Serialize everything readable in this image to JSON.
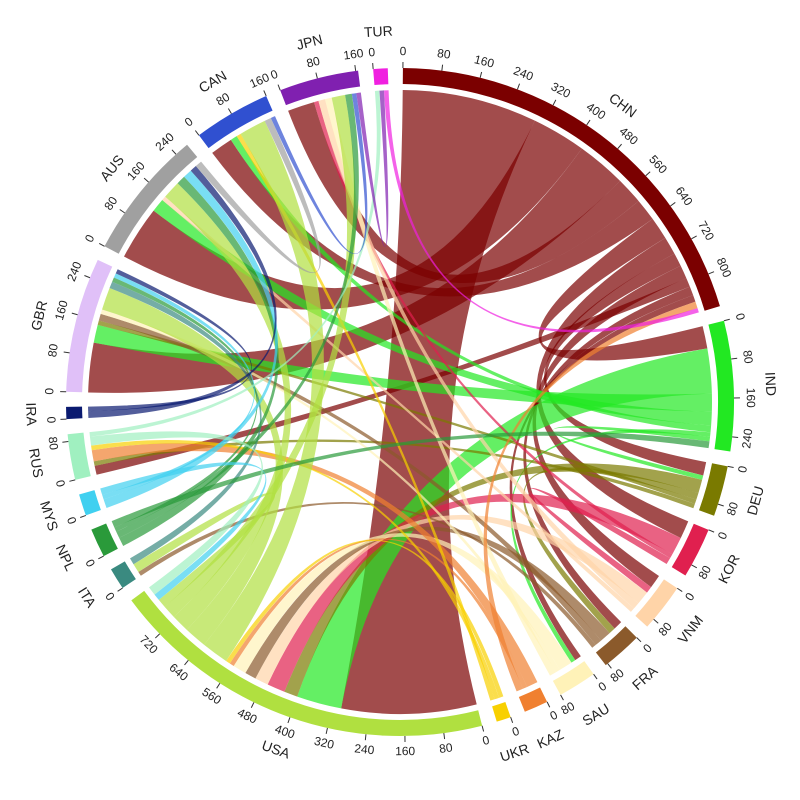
{
  "chart_data": {
    "type": "chord",
    "nodes": [
      {
        "name": "CHN",
        "color": "#7b0000",
        "ticks": [
          0,
          80,
          160,
          240,
          320,
          400,
          480,
          560,
          640,
          720,
          800
        ]
      },
      {
        "name": "IND",
        "color": "#22e822",
        "ticks": [
          0,
          80,
          160,
          240
        ]
      },
      {
        "name": "DEU",
        "color": "#7a7a00",
        "ticks": [
          0,
          80
        ]
      },
      {
        "name": "KOR",
        "color": "#e0204f",
        "ticks": [
          0,
          80
        ]
      },
      {
        "name": "VNM",
        "color": "#ffd4a8",
        "ticks": [
          0,
          80
        ]
      },
      {
        "name": "FRA",
        "color": "#8b5a2b",
        "ticks": [
          0,
          80
        ]
      },
      {
        "name": "SAU",
        "color": "#fff2b8",
        "ticks": [
          0,
          80
        ]
      },
      {
        "name": "KAZ",
        "color": "#f08030",
        "ticks": [
          0
        ]
      },
      {
        "name": "UKR",
        "color": "#f8d000",
        "ticks": [
          0
        ]
      },
      {
        "name": "USA",
        "color": "#b0e040",
        "ticks": [
          0,
          80,
          160,
          240,
          320,
          400,
          480,
          560,
          640,
          720
        ]
      },
      {
        "name": "ITA",
        "color": "#3a8a80",
        "ticks": [
          0
        ]
      },
      {
        "name": "NPL",
        "color": "#2a9a3a",
        "ticks": [
          0
        ]
      },
      {
        "name": "MYS",
        "color": "#40d0f0",
        "ticks": [
          0
        ]
      },
      {
        "name": "RUS",
        "color": "#a0f0c0",
        "ticks": [
          0,
          80
        ]
      },
      {
        "name": "IRA",
        "color": "#0a1a70",
        "ticks": [
          0
        ]
      },
      {
        "name": "GBR",
        "color": "#e0c0f8",
        "ticks": [
          0,
          80,
          160,
          240
        ]
      },
      {
        "name": "AUS",
        "color": "#a0a0a0",
        "ticks": [
          0,
          80,
          160,
          240
        ]
      },
      {
        "name": "CAN",
        "color": "#3050d0",
        "ticks": [
          0,
          80,
          160
        ]
      },
      {
        "name": "JPN",
        "color": "#8020b0",
        "ticks": [
          0,
          80,
          160
        ]
      },
      {
        "name": "TUR",
        "color": "#f020e0",
        "ticks": [
          0
        ]
      }
    ],
    "flows": [
      {
        "source": 0,
        "target": 9,
        "value": 300
      },
      {
        "source": 0,
        "target": 16,
        "value": 120
      },
      {
        "source": 0,
        "target": 15,
        "value": 110
      },
      {
        "source": 0,
        "target": 18,
        "value": 60
      },
      {
        "source": 0,
        "target": 17,
        "value": 50
      },
      {
        "source": 0,
        "target": 1,
        "value": 50
      },
      {
        "source": 0,
        "target": 3,
        "value": 40
      },
      {
        "source": 0,
        "target": 2,
        "value": 30
      },
      {
        "source": 0,
        "target": 4,
        "value": 30
      },
      {
        "source": 0,
        "target": 13,
        "value": 20
      },
      {
        "source": 0,
        "target": 5,
        "value": 20
      },
      {
        "source": 0,
        "target": 6,
        "value": 15
      },
      {
        "source": 1,
        "target": 9,
        "value": 100
      },
      {
        "source": 1,
        "target": 15,
        "value": 40
      },
      {
        "source": 1,
        "target": 16,
        "value": 30
      },
      {
        "source": 1,
        "target": 17,
        "value": 15
      },
      {
        "source": 1,
        "target": 6,
        "value": 10
      },
      {
        "source": 1,
        "target": 2,
        "value": 10
      },
      {
        "source": 2,
        "target": 9,
        "value": 30
      },
      {
        "source": 2,
        "target": 5,
        "value": 15
      },
      {
        "source": 2,
        "target": 15,
        "value": 10
      },
      {
        "source": 2,
        "target": 13,
        "value": 10
      },
      {
        "source": 3,
        "target": 9,
        "value": 40
      },
      {
        "source": 3,
        "target": 18,
        "value": 10
      },
      {
        "source": 3,
        "target": 4,
        "value": 15
      },
      {
        "source": 4,
        "target": 9,
        "value": 30
      },
      {
        "source": 4,
        "target": 18,
        "value": 15
      },
      {
        "source": 4,
        "target": 16,
        "value": 10
      },
      {
        "source": 5,
        "target": 9,
        "value": 25
      },
      {
        "source": 5,
        "target": 15,
        "value": 15
      },
      {
        "source": 5,
        "target": 10,
        "value": 10
      },
      {
        "source": 6,
        "target": 9,
        "value": 30
      },
      {
        "source": 6,
        "target": 15,
        "value": 10
      },
      {
        "source": 6,
        "target": 18,
        "value": 15
      },
      {
        "source": 7,
        "target": 13,
        "value": 25
      },
      {
        "source": 7,
        "target": 9,
        "value": 10
      },
      {
        "source": 7,
        "target": 0,
        "value": 15
      },
      {
        "source": 8,
        "target": 9,
        "value": 10
      },
      {
        "source": 8,
        "target": 13,
        "value": 10
      },
      {
        "source": 8,
        "target": 17,
        "value": 10
      },
      {
        "source": 9,
        "target": 17,
        "value": 60
      },
      {
        "source": 9,
        "target": 15,
        "value": 50
      },
      {
        "source": 9,
        "target": 16,
        "value": 40
      },
      {
        "source": 9,
        "target": 18,
        "value": 30
      },
      {
        "source": 9,
        "target": 10,
        "value": 20
      },
      {
        "source": 10,
        "target": 15,
        "value": 15
      },
      {
        "source": 11,
        "target": 16,
        "value": 20
      },
      {
        "source": 11,
        "target": 18,
        "value": 15
      },
      {
        "source": 11,
        "target": 15,
        "value": 10
      },
      {
        "source": 11,
        "target": 1,
        "value": 15
      },
      {
        "source": 12,
        "target": 16,
        "value": 20
      },
      {
        "source": 12,
        "target": 15,
        "value": 10
      },
      {
        "source": 12,
        "target": 9,
        "value": 15
      },
      {
        "source": 13,
        "target": 9,
        "value": 20
      },
      {
        "source": 13,
        "target": 19,
        "value": 10
      },
      {
        "source": 14,
        "target": 16,
        "value": 15
      },
      {
        "source": 14,
        "target": 15,
        "value": 10
      },
      {
        "source": 16,
        "target": 17,
        "value": 15
      },
      {
        "source": 17,
        "target": 18,
        "value": 10
      },
      {
        "source": 18,
        "target": 19,
        "value": 10
      },
      {
        "source": 19,
        "target": 0,
        "value": 10
      }
    ]
  }
}
